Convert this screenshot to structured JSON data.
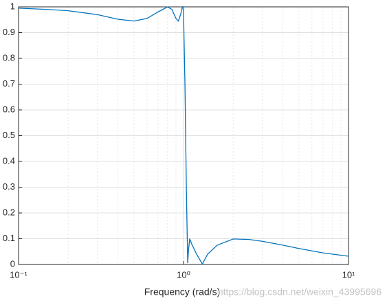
{
  "chart_data": {
    "type": "line",
    "xlabel": "Frequency (rad/s)",
    "watermark": "https://blog.csdn.net/weixin_43995696",
    "x": [
      0.1,
      0.15,
      0.2,
      0.3,
      0.4,
      0.5,
      0.6,
      0.7,
      0.8,
      0.85,
      0.9,
      0.93,
      0.96,
      0.98,
      0.99,
      1.0,
      1.02,
      1.04,
      1.06,
      1.07,
      1.09,
      1.12,
      1.2,
      1.3,
      1.4,
      1.6,
      2.0,
      2.5,
      3,
      4,
      5,
      7,
      10
    ],
    "series": [
      {
        "color": "#0072bd",
        "values": [
          0.995,
          0.99,
          0.985,
          0.97,
          0.952,
          0.945,
          0.955,
          0.98,
          1.0,
          0.99,
          0.955,
          0.945,
          0.97,
          0.995,
          1.0,
          0.98,
          0.7,
          0.3,
          0.005,
          0.05,
          0.1,
          0.08,
          0.04,
          0.002,
          0.04,
          0.075,
          0.099,
          0.097,
          0.09,
          0.075,
          0.062,
          0.045,
          0.032
        ]
      }
    ],
    "xscale": "log",
    "xlim": [
      0.1,
      10
    ],
    "xticks": [
      {
        "value": 0.1,
        "label": "10⁻¹"
      },
      {
        "value": 1,
        "label": "10⁰"
      },
      {
        "value": 10,
        "label": "10¹"
      }
    ],
    "xminorticks": [
      0.2,
      0.3,
      0.4,
      0.5,
      0.6,
      0.7,
      0.8,
      0.9,
      2,
      3,
      4,
      5,
      6,
      7,
      8,
      9
    ],
    "ylim": [
      0,
      1
    ],
    "yticks": [
      0,
      0.1,
      0.2,
      0.3,
      0.4,
      0.5,
      0.6,
      0.7,
      0.8,
      0.9,
      1
    ],
    "grid": true
  }
}
